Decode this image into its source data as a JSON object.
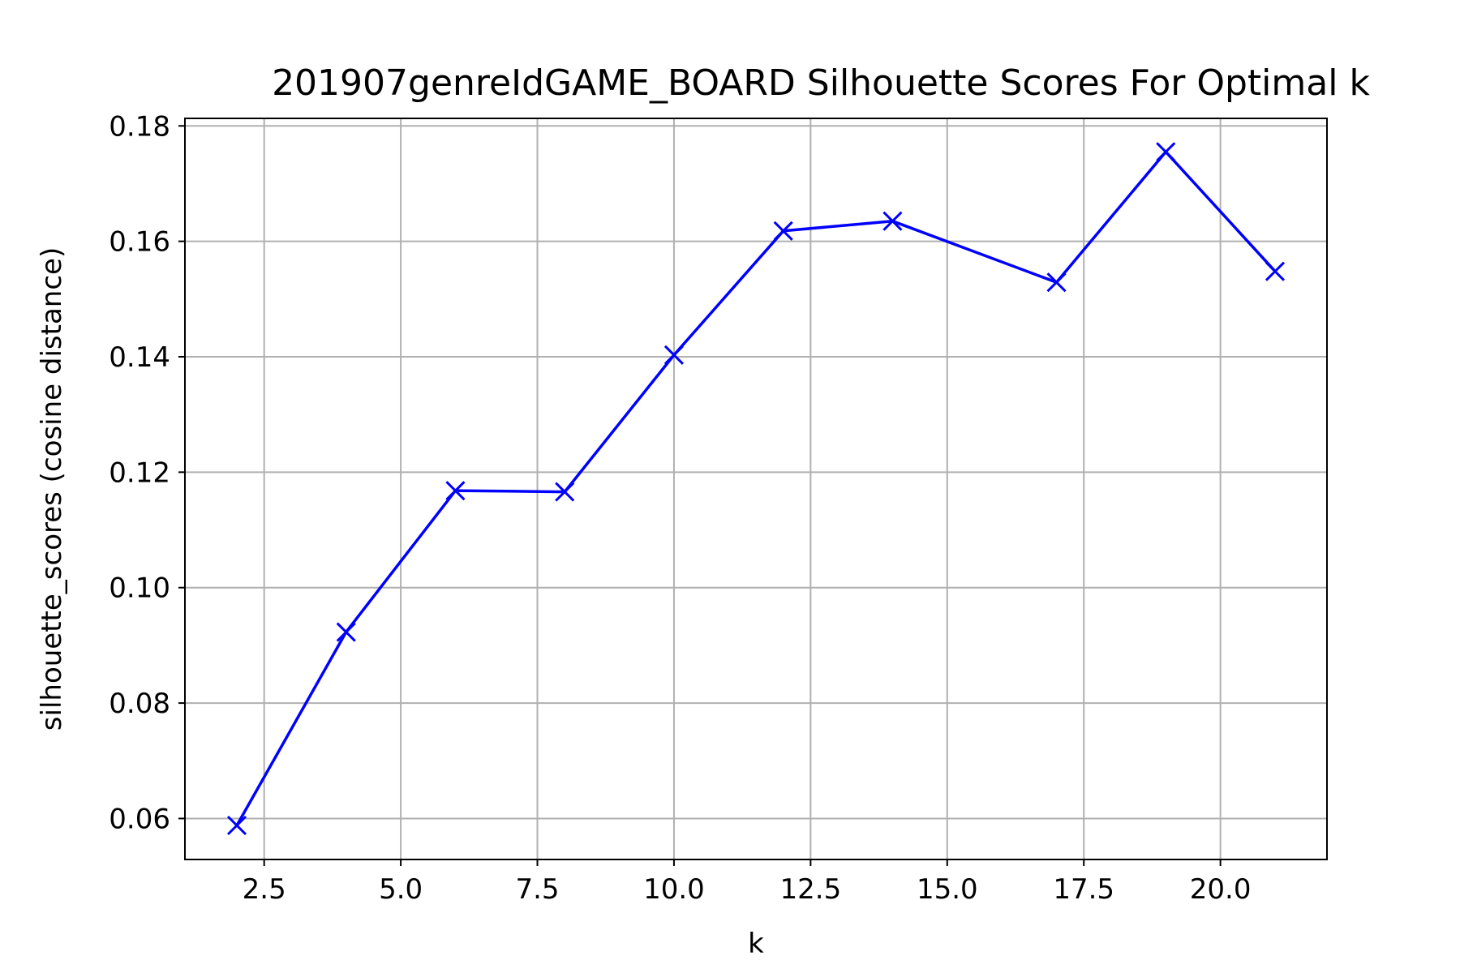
{
  "chart_data": {
    "type": "line",
    "title": "201907genreIdGAME_BOARD Silhouette Scores For Optimal k",
    "xlabel": "k",
    "ylabel": "silhouette_scores (cosine distance)",
    "x": [
      2,
      4,
      6,
      8,
      10,
      12,
      14,
      17,
      19,
      21
    ],
    "series": [
      {
        "values": [
          0.0588,
          0.0923,
          0.1168,
          0.1166,
          0.1403,
          0.1618,
          0.1635,
          0.1529,
          0.1755,
          0.1548
        ],
        "color": "#0000ff",
        "marker": "x"
      }
    ],
    "xlim": [
      1.05,
      21.95
    ],
    "ylim": [
      0.0529,
      0.1813
    ],
    "xticks": [
      2.5,
      5.0,
      7.5,
      10.0,
      12.5,
      15.0,
      17.5,
      20.0
    ],
    "xtick_labels": [
      "2.5",
      "5.0",
      "7.5",
      "10.0",
      "12.5",
      "15.0",
      "17.5",
      "20.0"
    ],
    "yticks": [
      0.06,
      0.08,
      0.1,
      0.12,
      0.14,
      0.16,
      0.18
    ],
    "ytick_labels": [
      "0.06",
      "0.08",
      "0.10",
      "0.12",
      "0.14",
      "0.16",
      "0.18"
    ],
    "grid": true
  }
}
